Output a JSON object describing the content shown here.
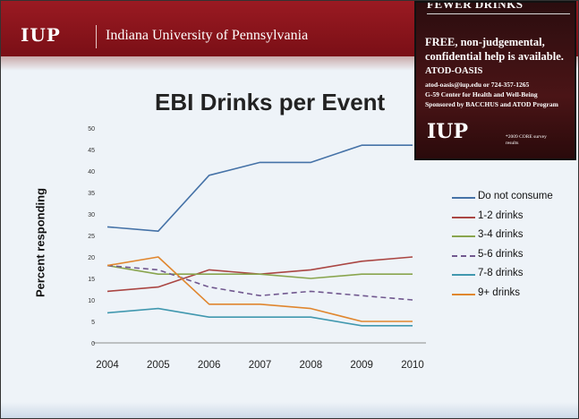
{
  "header": {
    "logo_text": "IUP",
    "university": "Indiana University of Pennsylvania",
    "brand_color": "#8a141c"
  },
  "ad": {
    "headline": "FEWER DRINKS",
    "line1": "FREE, non-judgemental,",
    "line2": "confidential help is available.",
    "line3": "ATOD-OASIS",
    "contact": "atod-oasis@iup.edu or 724-357-1265",
    "center": "G-59 Center for Health and Well-Being",
    "sponsor": "Sponsored by BACCHUS and ATOD Program",
    "logo_text": "IUP",
    "note": "*2009 CORE survey results"
  },
  "chart_data": {
    "type": "line",
    "title": "EBI Drinks per Event",
    "xlabel": "",
    "ylabel": "Percent responding",
    "x": [
      "2004",
      "2005",
      "2006",
      "2007",
      "2008",
      "2009",
      "2010"
    ],
    "ylim": [
      0,
      50
    ],
    "yticks": [
      "0",
      "5",
      "10",
      "15",
      "20",
      "25",
      "30",
      "35",
      "40",
      "45",
      "50"
    ],
    "grid": false,
    "legend_position": "right",
    "series": [
      {
        "name": "Do not consume",
        "color": "#4572a7",
        "dash": "solid",
        "values": [
          27,
          26,
          39,
          42,
          42,
          46,
          46
        ]
      },
      {
        "name": "1-2 drinks",
        "color": "#aa4643",
        "dash": "solid",
        "values": [
          12,
          13,
          17,
          16,
          17,
          19,
          20
        ]
      },
      {
        "name": "3-4 drinks",
        "color": "#89a54e",
        "dash": "solid",
        "values": [
          18,
          16,
          16,
          16,
          15,
          16,
          16
        ]
      },
      {
        "name": "5-6 drinks",
        "color": "#71588f",
        "dash": "dashed",
        "values": [
          18,
          17,
          13,
          11,
          12,
          11,
          10
        ]
      },
      {
        "name": "7-8 drinks",
        "color": "#4198af",
        "dash": "solid",
        "values": [
          7,
          8,
          6,
          6,
          6,
          4,
          4
        ]
      },
      {
        "name": "9+ drinks",
        "color": "#e0862e",
        "dash": "solid",
        "values": [
          18,
          20,
          9,
          9,
          8,
          5,
          5
        ]
      }
    ]
  }
}
